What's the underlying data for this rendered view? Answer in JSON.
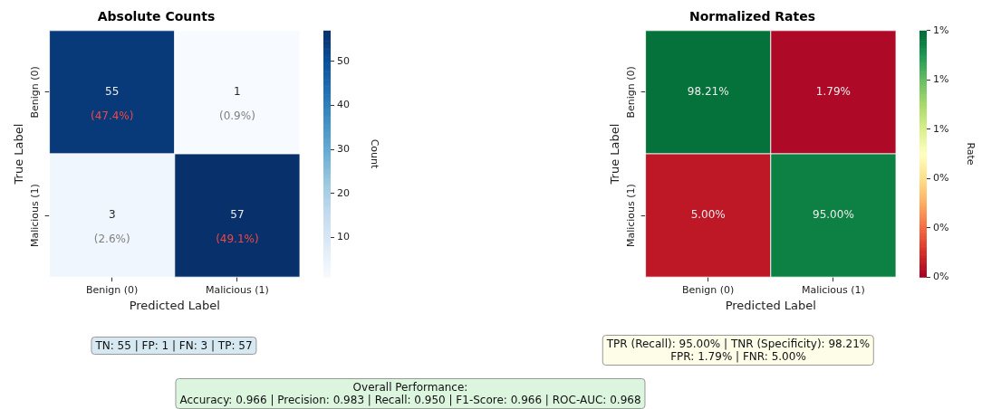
{
  "chart_data": [
    {
      "type": "heatmap",
      "title": "Absolute Counts",
      "xlabel": "Predicted Label",
      "ylabel": "True Label",
      "clabel": "Count",
      "categories": [
        "Benign (0)",
        "Malicious (1)"
      ],
      "y_categories": [
        "Benign (0)",
        "Malicious (1)"
      ],
      "cells": [
        [
          55,
          1
        ],
        [
          3,
          57
        ]
      ],
      "cell_labels": [
        [
          "55\n(47.4%)",
          "1\n(0.9%)"
        ],
        [
          "3\n(2.6%)",
          "57\n(49.1%)"
        ]
      ],
      "clim": [
        1,
        57
      ],
      "cticks": [
        10,
        20,
        30,
        40,
        50
      ],
      "annotations": [
        "TN: 55 | FP: 1 | FN: 3 | TP: 57",
        "Overall Performance:\nAccuracy: 0.966 | Precision: 0.983 | Recall: 0.950 | F1-Score: 0.966 | ROC-AUC: 0.968"
      ]
    },
    {
      "type": "heatmap",
      "title": "Normalized Rates",
      "xlabel": "Predicted Label",
      "ylabel": "True Label",
      "clabel": "Rate",
      "categories": [
        "Benign (0)",
        "Malicious (1)"
      ],
      "y_categories": [
        "Benign (0)",
        "Malicious (1)"
      ],
      "cells": [
        [
          0.9821,
          0.0179
        ],
        [
          0.05,
          0.95
        ]
      ],
      "cell_labels": [
        [
          "98.21%",
          "1.79%"
        ],
        [
          "5.00%",
          "95.00%"
        ]
      ],
      "clim": [
        0,
        1
      ],
      "cticks": [
        {
          "value": 0,
          "label": "0%"
        },
        {
          "value": 0.2,
          "label": "0%"
        },
        {
          "value": 0.4,
          "label": "0%"
        },
        {
          "value": 0.6,
          "label": "1%"
        },
        {
          "value": 0.8,
          "label": "1%"
        },
        {
          "value": 1,
          "label": "1%"
        }
      ],
      "annotations": [
        "TPR (Recall): 95.00% | TNR (Specificity): 98.21%\nFPR: 1.79% | FNR: 5.00%"
      ]
    }
  ]
}
